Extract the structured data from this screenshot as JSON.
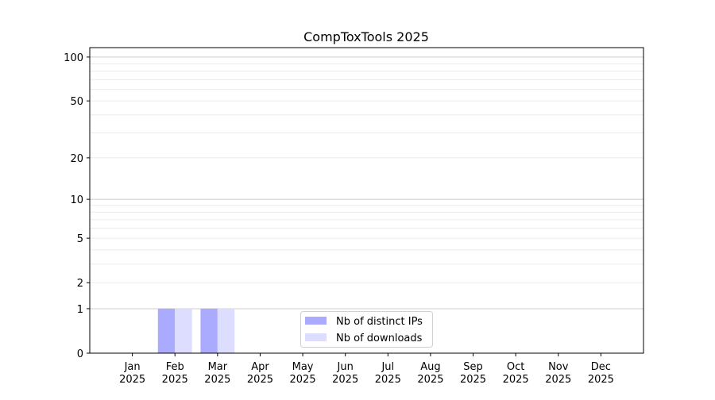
{
  "chart_data": {
    "type": "bar",
    "title": "CompTox​Tools 2025",
    "xlabel": "",
    "ylabel": "",
    "y_scale": "log(1+y)",
    "ylim": [
      0,
      116
    ],
    "y_ticks": [
      0,
      1,
      2,
      5,
      10,
      20,
      50,
      100
    ],
    "grid": "horizontal, major and minor",
    "legend_position": "bottom-center",
    "categories": [
      "Jan\n2025",
      "Feb\n2025",
      "Mar\n2025",
      "Apr\n2025",
      "May\n2025",
      "Jun\n2025",
      "Jul\n2025",
      "Aug\n2025",
      "Sep\n2025",
      "Oct\n2025",
      "Nov\n2025",
      "Dec\n2025"
    ],
    "series": [
      {
        "name": "Nb of distinct IPs",
        "color": "#aaaaff",
        "values": [
          0,
          1,
          1,
          0,
          0,
          0,
          0,
          0,
          0,
          0,
          0,
          0
        ]
      },
      {
        "name": "Nb of downloads",
        "color": "#ddddff",
        "values": [
          0,
          1,
          1,
          0,
          0,
          0,
          0,
          0,
          0,
          0,
          0,
          0
        ]
      }
    ]
  }
}
